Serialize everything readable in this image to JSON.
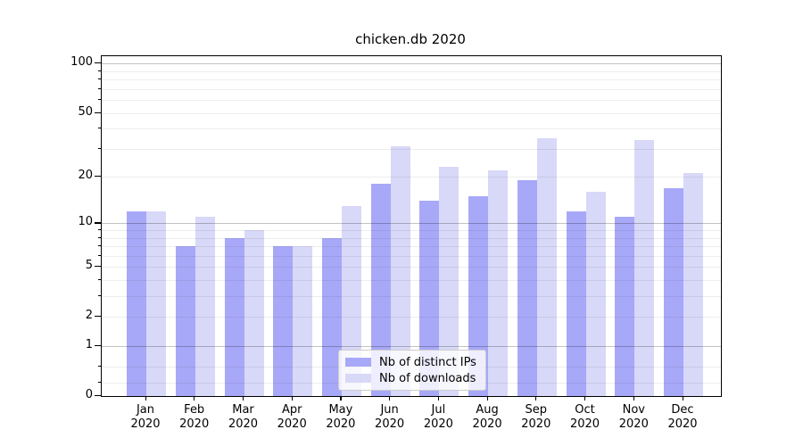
{
  "figure": {
    "background_color": "#ffffff",
    "spine_color": "#000000",
    "text_color": "#000000"
  },
  "chart_data": {
    "type": "bar",
    "title": "chicken.db 2020",
    "xlabel": "",
    "ylabel": "",
    "categories": [
      "Jan",
      "Feb",
      "Mar",
      "Apr",
      "May",
      "Jun",
      "Jul",
      "Aug",
      "Sep",
      "Oct",
      "Nov",
      "Dec"
    ],
    "category_year": "2020",
    "series": [
      {
        "name": "Nb of distinct IPs",
        "color": "#a8a8f8",
        "values": [
          12,
          7,
          8,
          7,
          8,
          18,
          14,
          15,
          19,
          12,
          11,
          17
        ]
      },
      {
        "name": "Nb of downloads",
        "color": "#d8d8f8",
        "values": [
          12,
          11,
          9,
          7,
          13,
          31,
          23,
          22,
          35,
          16,
          34,
          21
        ]
      }
    ],
    "yscale": "log1p",
    "ylim": [
      0,
      111
    ],
    "yticks": [
      {
        "value": 100,
        "label": "100"
      },
      {
        "value": 50,
        "label": "50"
      },
      {
        "value": 20,
        "label": "20"
      },
      {
        "value": 10,
        "label": "10"
      },
      {
        "value": 5,
        "label": "5"
      },
      {
        "value": 2,
        "label": "2"
      },
      {
        "value": 1,
        "label": "1"
      },
      {
        "value": 0,
        "label": "0"
      }
    ],
    "minor_ticks": [
      0.2,
      0.5,
      2,
      3,
      4,
      5,
      6,
      7,
      8,
      9,
      20,
      30,
      40,
      50,
      60,
      70,
      80,
      90
    ],
    "major_gridlines": [
      1,
      10,
      100
    ],
    "grid": true,
    "grid_minor_color": "#ececec",
    "grid_major_color": "#c2c2c2",
    "legend_position": "lower center"
  }
}
